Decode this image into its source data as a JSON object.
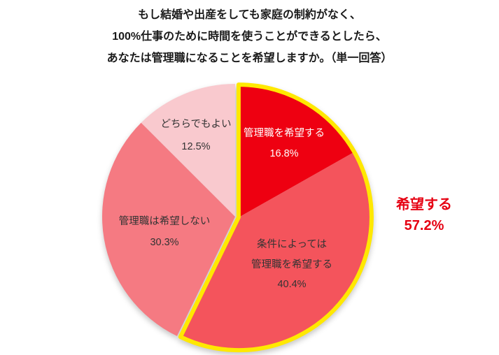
{
  "title_block": {
    "lines": [
      "もし結婚や出産をしても家庭の制約がなく、",
      "100%仕事のために時間を使うことができるとしたら、",
      "あなたは管理職になることを希望しますか。（単一回答）"
    ]
  },
  "chart_data": {
    "type": "pie",
    "title": "もし結婚や出産をしても家庭の制約がなく、100%仕事のために時間を使うことができるとしたら、あなたは管理職になることを希望しますか。（単一回答）",
    "unit": "%",
    "direction": "clockwise",
    "start_angle_deg": 0,
    "slices": [
      {
        "label": "管理職を希望する",
        "value": 16.8,
        "color": "#ee0011",
        "text_color": "#ffffff",
        "in_highlight_group": true,
        "label_lines": [
          "管理職を希望する",
          "16.8%"
        ]
      },
      {
        "label": "条件によっては管理職を希望する",
        "value": 40.4,
        "color": "#f4545c",
        "text_color": "#333333",
        "in_highlight_group": true,
        "label_lines": [
          "条件によっては",
          "管理職を希望する",
          "40.4%"
        ]
      },
      {
        "label": "管理職は希望しない",
        "value": 30.3,
        "color": "#f57a82",
        "text_color": "#333333",
        "in_highlight_group": false,
        "label_lines": [
          "管理職は希望しない",
          "30.3%"
        ]
      },
      {
        "label": "どちらでもよい",
        "value": 12.5,
        "color": "#f9c9ce",
        "text_color": "#333333",
        "in_highlight_group": false,
        "label_lines": [
          "どちらでもよい",
          "12.5%"
        ]
      }
    ],
    "highlight": {
      "label": "希望する",
      "value": 57.2,
      "value_label": "57.2%",
      "outline_color": "#ffe800",
      "text_color": "#e60012"
    },
    "legend": "none",
    "background": "#ffffff"
  }
}
